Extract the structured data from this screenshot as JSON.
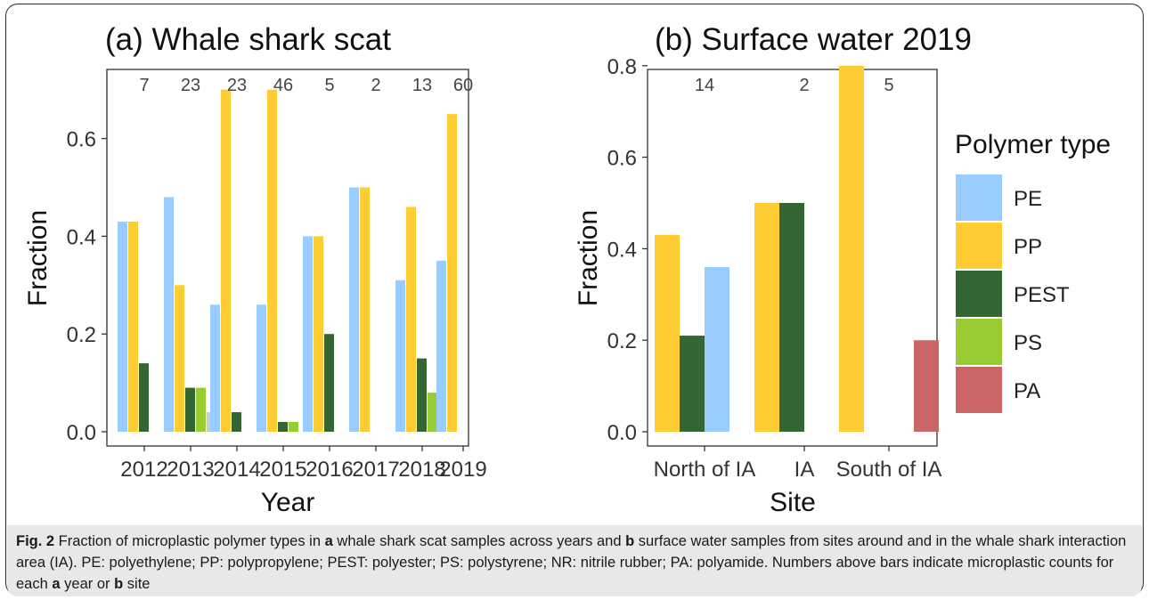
{
  "colors": {
    "PE": "#99ccff",
    "PP": "#ffcc33",
    "PEST": "#336633",
    "PS": "#99cc33",
    "PA": "#cc6666",
    "NR": "#cccccc"
  },
  "legend": {
    "title": "Polymer type",
    "items": [
      {
        "key": "PE",
        "label": "PE"
      },
      {
        "key": "PP",
        "label": "PP"
      },
      {
        "key": "PEST",
        "label": "PEST"
      },
      {
        "key": "PS",
        "label": "PS"
      },
      {
        "key": "PA",
        "label": "PA"
      }
    ]
  },
  "chart_data": [
    {
      "type": "bar",
      "title": "(a) Whale shark scat",
      "xlabel": "Year",
      "ylabel": "Fraction",
      "ylim": [
        0,
        0.72
      ],
      "yticks": [
        0.0,
        0.2,
        0.4,
        0.6
      ],
      "ytick_labels": [
        "0.0",
        "0.2",
        "0.4",
        "0.6"
      ],
      "grid": false,
      "series_order": [
        "PE",
        "PP",
        "PEST",
        "PS",
        "NR"
      ],
      "categories": [
        "2012",
        "2013",
        "2014",
        "2015",
        "2016",
        "2017",
        "2018",
        "2019"
      ],
      "counts": [
        "7",
        "23",
        "23",
        "46",
        "5",
        "2",
        "13",
        "60"
      ],
      "bars": [
        {
          "PE": 0.43,
          "PP": 0.43,
          "PEST": 0.14
        },
        {
          "PE": 0.48,
          "PP": 0.3,
          "PEST": 0.09,
          "PS": 0.09,
          "NR": 0.04
        },
        {
          "PE": 0.26,
          "PP": 0.7,
          "PEST": 0.04
        },
        {
          "PE": 0.26,
          "PP": 0.7,
          "PEST": 0.02,
          "PS": 0.02
        },
        {
          "PE": 0.4,
          "PP": 0.4,
          "PEST": 0.2
        },
        {
          "PE": 0.5,
          "PP": 0.5
        },
        {
          "PE": 0.31,
          "PP": 0.46,
          "PEST": 0.15,
          "PS": 0.08
        },
        {
          "PE": 0.35,
          "PP": 0.65
        }
      ]
    },
    {
      "type": "bar",
      "title": "(b) Surface water 2019",
      "xlabel": "Site",
      "ylabel": "Fraction",
      "ylim": [
        0,
        0.82
      ],
      "yticks": [
        0.0,
        0.2,
        0.4,
        0.6,
        0.8
      ],
      "ytick_labels": [
        "0.0",
        "0.2",
        "0.4",
        "0.6",
        "0.8"
      ],
      "grid": false,
      "series_order": [
        "PP",
        "PEST",
        "PE",
        "PA"
      ],
      "categories": [
        "North of IA",
        "IA",
        "South of IA"
      ],
      "counts": [
        "14",
        "2",
        "5"
      ],
      "bars": [
        {
          "PP": 0.43,
          "PEST": 0.21,
          "PE": 0.36
        },
        {
          "PP": 0.5,
          "PEST": 0.5
        },
        {
          "PP": 0.8,
          "PA": 0.2
        }
      ]
    }
  ],
  "caption": {
    "label": "Fig. 2",
    "segments": [
      {
        "t": " Fraction of microplastic polymer types in ",
        "b": false
      },
      {
        "t": "a",
        "b": true
      },
      {
        "t": " whale shark scat samples across years and ",
        "b": false
      },
      {
        "t": "b",
        "b": true
      },
      {
        "t": " surface water samples from sites around and in the whale shark interaction area (IA). PE: polyethylene; PP: polypropylene; PEST: polyester; PS: polystyrene; NR: nitrile rubber; PA: polyamide. Numbers above bars indicate microplastic counts for each ",
        "b": false
      },
      {
        "t": "a",
        "b": true
      },
      {
        "t": " year or ",
        "b": false
      },
      {
        "t": "b",
        "b": true
      },
      {
        "t": " site",
        "b": false
      }
    ]
  }
}
